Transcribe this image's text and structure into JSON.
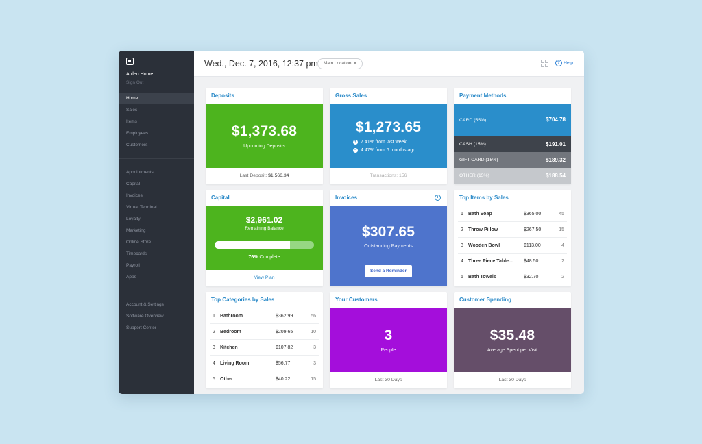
{
  "header": {
    "datetime": "Wed., Dec. 7, 2016, 12:37 pm",
    "location": "Main Location",
    "help": "Help"
  },
  "sidebar": {
    "account": "Arden Home",
    "sign_out": "Sign Out",
    "group1": [
      "Home",
      "Sales",
      "Items",
      "Employees",
      "Customers"
    ],
    "group2": [
      "Appointments",
      "Capital",
      "Invoices",
      "Virtual Terminal",
      "Loyalty",
      "Marketing",
      "Online Store",
      "Timecards",
      "Payroll",
      "Apps"
    ],
    "group3": [
      "Account & Settings",
      "Software Overview",
      "Support Center"
    ]
  },
  "deposits": {
    "title": "Deposits",
    "amount": "$1,373.68",
    "sublabel": "Upcoming Deposits",
    "footer_label": "Last Deposit:",
    "footer_value": "$1,566.34",
    "color": "#4db41e"
  },
  "gross_sales": {
    "title": "Gross Sales",
    "amount": "$1,273.65",
    "change1": "7.41% from last week",
    "change2": "4.47% from 6 months ago",
    "footer": "Transactions: 156",
    "color": "#2a8ecb"
  },
  "payment_methods": {
    "title": "Payment Methods",
    "rows": [
      {
        "label": "CARD",
        "pct": "(55%)",
        "amount": "$704.78",
        "color": "#2a8ecb"
      },
      {
        "label": "CASH",
        "pct": "(15%)",
        "amount": "$191.01",
        "color": "#3e434b"
      },
      {
        "label": "GIFT CARD",
        "pct": "(15%)",
        "amount": "$189.32",
        "color": "#72767d"
      },
      {
        "label": "OTHER",
        "pct": "(15%)",
        "amount": "$188.54",
        "color": "#c5c8cc"
      }
    ]
  },
  "capital": {
    "title": "Capital",
    "amount": "$2,961.02",
    "sublabel": "Remaining Balance",
    "progress": 0.76,
    "pct_label": "76%",
    "complete_label": "Complete",
    "footer": "View Plan",
    "color": "#4db41e"
  },
  "invoices": {
    "title": "Invoices",
    "info_icon": "i",
    "amount": "$307.65",
    "sublabel": "Outstanding Payments",
    "button": "Send a Reminder",
    "color": "#4e74cc"
  },
  "top_items": {
    "title": "Top Items by Sales",
    "rows": [
      {
        "n": "1",
        "name": "Bath Soap",
        "amount": "$365.00",
        "count": "45"
      },
      {
        "n": "2",
        "name": "Throw Pillow",
        "amount": "$267.50",
        "count": "15"
      },
      {
        "n": "3",
        "name": "Wooden Bowl",
        "amount": "$113.00",
        "count": "4"
      },
      {
        "n": "4",
        "name": "Three Piece Table...",
        "amount": "$48.50",
        "count": "2"
      },
      {
        "n": "5",
        "name": "Bath Towels",
        "amount": "$32.70",
        "count": "2"
      }
    ]
  },
  "top_categories": {
    "title": "Top Categories by Sales",
    "rows": [
      {
        "n": "1",
        "name": "Bathroom",
        "amount": "$362.99",
        "count": "56"
      },
      {
        "n": "2",
        "name": "Bedroom",
        "amount": "$209.65",
        "count": "10"
      },
      {
        "n": "3",
        "name": "Kitchen",
        "amount": "$107.82",
        "count": "3"
      },
      {
        "n": "4",
        "name": "Living Room",
        "amount": "$56.77",
        "count": "3"
      },
      {
        "n": "5",
        "name": "Other",
        "amount": "$40.22",
        "count": "15"
      }
    ]
  },
  "your_customers": {
    "title": "Your Customers",
    "value": "3",
    "sublabel": "People",
    "footer": "Last 30 Days",
    "color": "#a40edb"
  },
  "customer_spending": {
    "title": "Customer Spending",
    "amount": "$35.48",
    "sublabel": "Average Spent per Visit",
    "footer": "Last 30 Days",
    "color": "#654e69"
  }
}
